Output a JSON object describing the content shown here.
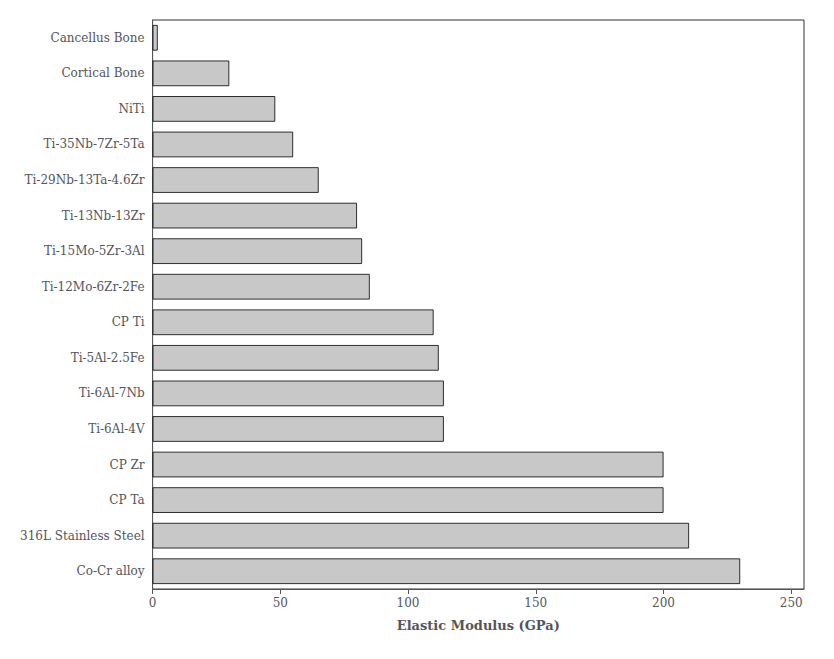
{
  "chart_data": {
    "type": "bar",
    "orientation": "horizontal",
    "xlabel": "Elastic Modulus (GPa)",
    "categories": [
      "Co-Cr alloy",
      "316L Stainless Steel",
      "CP Ta",
      "CP Zr",
      "Ti-6Al-4V",
      "Ti-6Al-7Nb",
      "Ti-5Al-2.5Fe",
      "CP Ti",
      "Ti-12Mo-6Zr-2Fe",
      "Ti-15Mo-5Zr-3Al",
      "Ti-13Nb-13Zr",
      "Ti-29Nb-13Ta-4.6Zr",
      "Ti-35Nb-7Zr-5Ta",
      "NiTi",
      "Cortical Bone",
      "Cancellus Bone"
    ],
    "values": [
      230,
      210,
      200,
      200,
      114,
      114,
      112,
      110,
      85,
      82,
      80,
      65,
      55,
      48,
      30,
      2
    ],
    "color": "#c8c8c8",
    "xlim": [
      0,
      255
    ],
    "xticks": [
      0,
      50,
      100,
      150,
      200,
      250
    ],
    "grid": false
  }
}
